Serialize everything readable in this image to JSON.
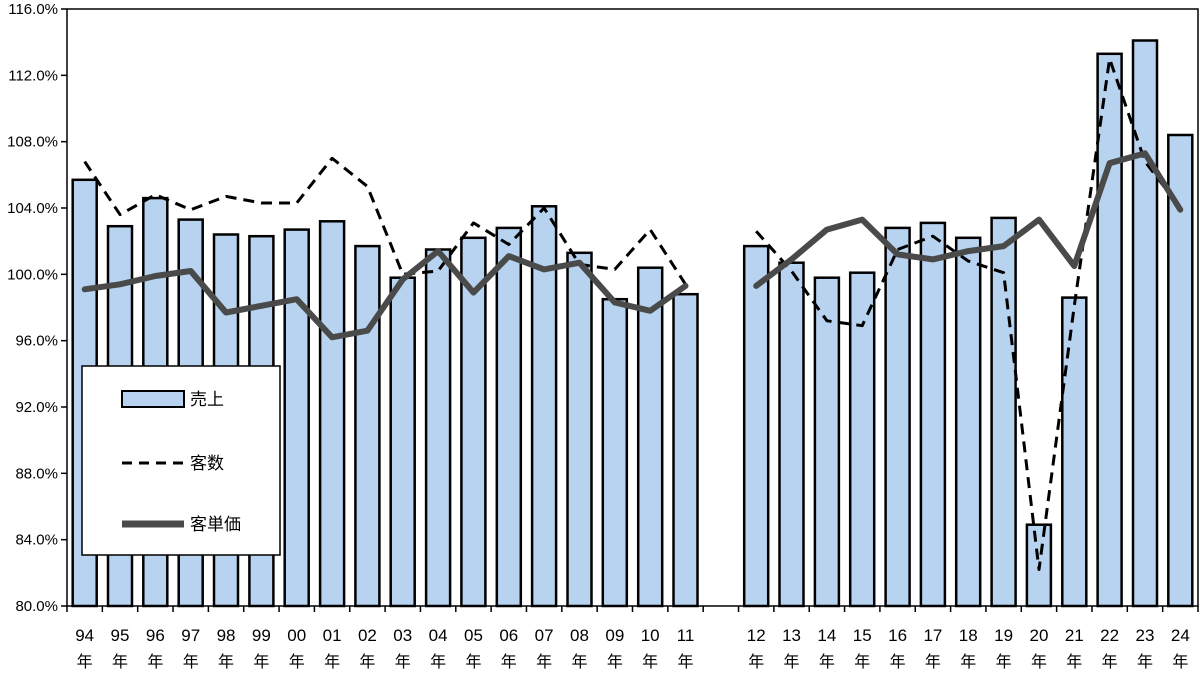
{
  "chart_data": {
    "type": "bar",
    "ylim": [
      80,
      116
    ],
    "y_ticks": [
      "80.0%",
      "84.0%",
      "88.0%",
      "92.0%",
      "96.0%",
      "100.0%",
      "104.0%",
      "108.0%",
      "112.0%",
      "116.0%"
    ],
    "y_tick_values": [
      80,
      84,
      88,
      92,
      96,
      100,
      104,
      108,
      112,
      116
    ],
    "year_suffix": "年",
    "categories": [
      "94",
      "95",
      "96",
      "97",
      "98",
      "99",
      "00",
      "01",
      "02",
      "03",
      "04",
      "05",
      "06",
      "07",
      "08",
      "09",
      "10",
      "11",
      "",
      "12",
      "13",
      "14",
      "15",
      "16",
      "17",
      "18",
      "19",
      "20",
      "21",
      "22",
      "23",
      "24"
    ],
    "series": [
      {
        "name": "売上",
        "kind": "bar",
        "color": "#b7d3ef",
        "values": [
          105.7,
          102.9,
          104.6,
          103.3,
          102.4,
          102.3,
          102.7,
          103.2,
          101.7,
          99.8,
          101.5,
          102.2,
          102.8,
          104.1,
          101.3,
          98.5,
          100.4,
          98.8,
          null,
          101.7,
          100.7,
          99.8,
          100.1,
          102.8,
          103.1,
          102.2,
          103.4,
          84.9,
          98.6,
          113.3,
          114.1,
          108.4
        ]
      },
      {
        "name": "客数",
        "kind": "line-dashed",
        "color": "#000000",
        "values": [
          106.8,
          103.6,
          104.8,
          103.9,
          104.7,
          104.3,
          104.3,
          107.0,
          105.3,
          100.0,
          100.2,
          103.1,
          101.8,
          104.0,
          100.6,
          100.3,
          102.7,
          99.4,
          null,
          102.6,
          100.2,
          97.2,
          96.9,
          101.5,
          102.3,
          100.8,
          100.1,
          82.2,
          98.1,
          113.0,
          106.8,
          104.0
        ]
      },
      {
        "name": "客単価",
        "kind": "line-solid",
        "color": "#4a4a4a",
        "values": [
          99.1,
          99.4,
          99.9,
          100.2,
          97.7,
          98.1,
          98.5,
          96.2,
          96.6,
          99.7,
          101.4,
          98.9,
          101.1,
          100.3,
          100.7,
          98.3,
          97.8,
          99.3,
          null,
          99.3,
          100.9,
          102.7,
          103.3,
          101.2,
          100.9,
          101.4,
          101.7,
          103.3,
          100.5,
          106.7,
          107.3,
          103.9
        ]
      }
    ],
    "legend_position": "left"
  }
}
